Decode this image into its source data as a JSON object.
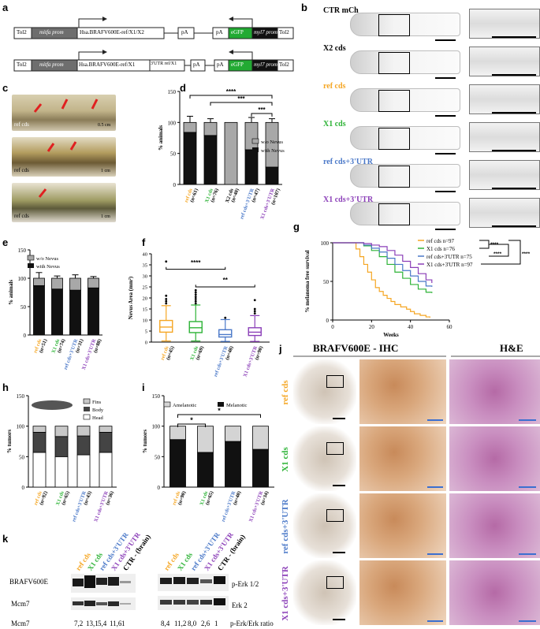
{
  "labels": {
    "a": "a",
    "b": "b",
    "c": "c",
    "d": "d",
    "e": "e",
    "f": "f",
    "g": "g",
    "h": "h",
    "i": "i",
    "j": "j",
    "k": "k"
  },
  "colors": {
    "ref": "#f5a623",
    "x1": "#2db336",
    "refutr": "#4a78c8",
    "x1utr": "#8b3fb8",
    "dark": "#111111",
    "gray": "#a8a8a8",
    "light": "#d4d4d4"
  },
  "panel_a": {
    "row1": [
      "Tol2",
      "mitfa prom",
      "Hsa.BRAFV600E-ref/X1/X2",
      "pA",
      "pA",
      "eGFP",
      "myl7 prom",
      "Tol2"
    ],
    "row2": [
      "Tol2",
      "mitfa prom",
      "Hsa.BRAFV600E-ref/X1",
      "3'UTR ref/X1",
      "pA",
      "pA",
      "eGFP",
      "myl7 prom",
      "Tol2"
    ]
  },
  "panel_b": {
    "rows": [
      "CTR mCh",
      "X2 cds",
      "ref cds",
      "X1 cds",
      "ref cds+3'UTR",
      "X1 cds+3'UTR"
    ]
  },
  "panel_c": {
    "captions": [
      "ref cds",
      "ref cds",
      "ref cds"
    ],
    "scales": [
      "0.5 cm",
      "1 cm",
      "1 cm"
    ]
  },
  "panel_d": {
    "chart_data": {
      "type": "bar",
      "ylabel": "% animals",
      "ylim": [
        0,
        150
      ],
      "yticks": [
        "0",
        "50",
        "100",
        "150"
      ],
      "categories": [
        "ref cds",
        "X1 cds",
        "X2 cds",
        "ref cds+3'UTR",
        "X1 cds+3'UTR"
      ],
      "ns": [
        "(n=61)",
        "(n=76)",
        "(n=40)",
        "(n=47)",
        "(n=107)"
      ],
      "series": [
        {
          "name": "with Nevus",
          "values": [
            84,
            79,
            0,
            56,
            28
          ]
        },
        {
          "name": "w/o Nevus",
          "values": [
            16,
            21,
            100,
            44,
            72
          ]
        }
      ],
      "errors": [
        10,
        6,
        0,
        8,
        6
      ],
      "legend": [
        "w/o Nevus",
        "with Nevus"
      ],
      "sig": [
        "***",
        "****",
        "***"
      ]
    }
  },
  "panel_e": {
    "chart_data": {
      "type": "bar",
      "ylabel": "% animals",
      "ylim": [
        0,
        150
      ],
      "yticks": [
        "0",
        "50",
        "100",
        "150"
      ],
      "categories": [
        "ref cds",
        "X1 cds",
        "ref cds+3'UTR",
        "X1 cds+3'UTR"
      ],
      "ns": [
        "(n=51)",
        "(n=74)",
        "(n=31)",
        "(n=88)"
      ],
      "series": [
        {
          "name": "with Nevus",
          "values": [
            87,
            81,
            79,
            83
          ]
        },
        {
          "name": "w/o Nevus",
          "values": [
            13,
            19,
            21,
            17
          ]
        }
      ],
      "errors": [
        10,
        4,
        6,
        3
      ],
      "legend": [
        "w/o Nevus",
        "with Nevus"
      ]
    }
  },
  "panel_f": {
    "chart_data": {
      "type": "box",
      "ylabel": "Nevus Area (mm²)",
      "ylim": [
        0,
        40
      ],
      "yticks": [
        "0",
        "5",
        "10",
        "15",
        "20",
        "25",
        "30",
        "35",
        "40"
      ],
      "categories": [
        "ref cds",
        "X1 cds",
        "ref cds+3'UTR",
        "X1 cds+3'UTR"
      ],
      "ns": [
        "(n=45)",
        "(n=69)",
        "(n=48)",
        "(n=90)"
      ],
      "boxes": [
        {
          "min": 0.5,
          "q1": 4.5,
          "median": 6.8,
          "q3": 9.8,
          "max": 16.5
        },
        {
          "min": 0.5,
          "q1": 4.3,
          "median": 6.5,
          "q3": 9.3,
          "max": 16.8
        },
        {
          "min": 0.3,
          "q1": 2.3,
          "median": 3.4,
          "q3": 5.6,
          "max": 10.2
        },
        {
          "min": 0.3,
          "q1": 3.0,
          "median": 4.5,
          "q3": 6.5,
          "max": 12.0
        }
      ],
      "outliers": [
        [
          17.5,
          18.5,
          19.5,
          21,
          36.5
        ],
        [
          17.5,
          18.5,
          19.5,
          20.5,
          21.5,
          22.5,
          23.5
        ],
        [
          11
        ],
        [
          13,
          14,
          15,
          19
        ]
      ],
      "sig": [
        "****",
        "**"
      ]
    }
  },
  "panel_g": {
    "chart_data": {
      "type": "line",
      "xlabel": "Weeks",
      "ylabel": "% melanoma free survival",
      "xlim": [
        0,
        60
      ],
      "ylim": [
        0,
        100
      ],
      "xticks": [
        "0",
        "20",
        "40",
        "60"
      ],
      "yticks": [
        "0",
        "50",
        "100"
      ],
      "series": [
        {
          "name": "ref cds n=97",
          "x": [
            0,
            10,
            12,
            14,
            16,
            18,
            20,
            22,
            24,
            26,
            28,
            30,
            32,
            35,
            38,
            40,
            42,
            45,
            48,
            50
          ],
          "y": [
            100,
            100,
            92,
            82,
            72,
            62,
            52,
            42,
            37,
            32,
            28,
            24,
            20,
            17,
            14,
            11,
            8,
            6,
            4,
            3
          ]
        },
        {
          "name": "X1 cds n=76",
          "x": [
            0,
            12,
            16,
            20,
            24,
            28,
            32,
            36,
            40,
            44,
            48,
            51
          ],
          "y": [
            100,
            100,
            96,
            90,
            82,
            72,
            62,
            54,
            46,
            40,
            36,
            35
          ]
        },
        {
          "name": "ref cds+3'UTR n=75",
          "x": [
            0,
            12,
            16,
            20,
            24,
            28,
            32,
            36,
            40,
            44,
            48,
            51
          ],
          "y": [
            100,
            100,
            97,
            93,
            88,
            80,
            72,
            64,
            57,
            50,
            44,
            43
          ]
        },
        {
          "name": "X1 cds+3'UTR n=97",
          "x": [
            0,
            12,
            16,
            20,
            24,
            28,
            32,
            36,
            40,
            44,
            48,
            51
          ],
          "y": [
            100,
            100,
            99,
            97,
            95,
            90,
            84,
            76,
            68,
            60,
            52,
            48
          ]
        }
      ],
      "sig": [
        "****",
        "****",
        "****"
      ]
    }
  },
  "panel_h": {
    "chart_data": {
      "type": "bar",
      "ylabel": "% tumors",
      "ylim": [
        0,
        150
      ],
      "yticks": [
        "0",
        "50",
        "100",
        "150"
      ],
      "categories": [
        "ref cds",
        "X1 cds",
        "ref cds+3'UTR",
        "X1 cds+3'UTR"
      ],
      "ns": [
        "(n=92)",
        "(n=65)",
        "(n=43)",
        "(n=36)"
      ],
      "series": [
        {
          "name": "Head",
          "values": [
            57,
            50,
            53,
            57
          ]
        },
        {
          "name": "Body",
          "values": [
            33,
            33,
            31,
            33
          ]
        },
        {
          "name": "Fins",
          "values": [
            10,
            17,
            16,
            10
          ]
        }
      ],
      "legend": [
        "Fins",
        "Body",
        "Head"
      ]
    }
  },
  "panel_i": {
    "chart_data": {
      "type": "bar",
      "ylabel": "% tumors",
      "ylim": [
        0,
        150
      ],
      "yticks": [
        "0",
        "50",
        "100",
        "150"
      ],
      "categories": [
        "ref cds",
        "X1 cds",
        "ref cds+3'UTR",
        "X1 cds+3'UTR"
      ],
      "ns": [
        "(n=90)",
        "(n=65)",
        "(n=40)",
        "(n=34)"
      ],
      "series": [
        {
          "name": "Melanotic",
          "values": [
            78,
            57,
            75,
            62
          ]
        },
        {
          "name": "Amelanotic",
          "values": [
            22,
            43,
            25,
            38
          ]
        }
      ],
      "legend": [
        "Amelanotic",
        "Melanotic"
      ],
      "sig": [
        "*",
        "*"
      ]
    }
  },
  "panel_j": {
    "header_ihc": "BRAFV600E - IHC",
    "header_he": "H&E",
    "rows": [
      "ref cds",
      "X1 cds",
      "ref cds+3'UTR",
      "X1 cds+3'UTR"
    ]
  },
  "panel_k": {
    "lanes": [
      "ref cds",
      "X1 cds",
      "ref cds+3'UTR",
      "X1 cds+3'UTR",
      "CTR - (brain)"
    ],
    "left_labels": [
      "BRAFV600E",
      "Mcm7"
    ],
    "right_labels": [
      "p-Erk 1/2",
      "Erk 2"
    ],
    "quant_label_left": "Mcm7",
    "quant_left": [
      "7,2",
      "13,1",
      "5,4",
      "11,6",
      "1"
    ],
    "quant_right": [
      "8,4",
      "11,2",
      "8,0",
      "2,6",
      "1"
    ],
    "quant_label_right": "p-Erk/Erk ratio"
  }
}
